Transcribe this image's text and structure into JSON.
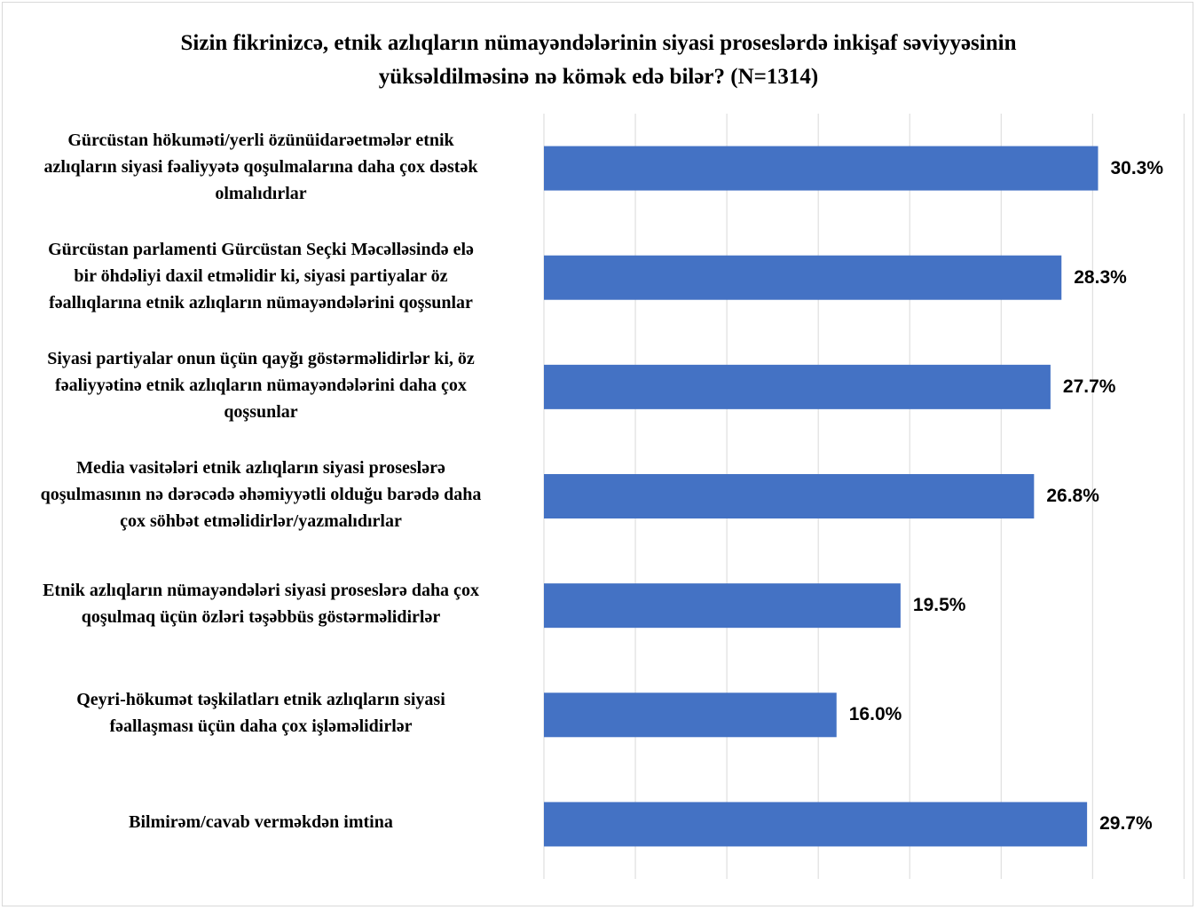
{
  "chart_data": {
    "type": "bar",
    "orientation": "horizontal",
    "title": [
      "Sizin fikrinizcə, etnik azlıqların nümayəndələrinin siyasi proseslərdə inkişaf səviyyəsinin",
      "yüksəldilməsinə nə kömək edə bilər? (N=1314)"
    ],
    "categories": [
      [
        "Gürcüstan hökuməti/yerli özünüidarəetmələr etnik",
        "azlıqların siyasi fəaliyyətə qoşulmalarına daha çox dəstək",
        "olmalıdırlar"
      ],
      [
        "Gürcüstan parlamenti Gürcüstan Seçki Məcəlləsində elə",
        "bir öhdəliyi daxil etməlidir ki, siyasi partiyalar öz",
        "fəallıqlarına etnik azlıqların nümayəndələrini qoşsunlar"
      ],
      [
        "Siyasi partiyalar onun üçün qayğı göstərməlidirlər ki, öz",
        "fəaliyyətinə etnik azlıqların nümayəndələrini daha çox",
        "qoşsunlar"
      ],
      [
        "Media vasitələri etnik azlıqların siyasi proseslərə",
        "qoşulmasının nə dərəcədə əhəmiyyətli olduğu barədə daha",
        "çox söhbət etməlidirlər/yazmalıdırlar"
      ],
      [
        "Etnik azlıqların nümayəndələri siyasi proseslərə daha çox",
        "qoşulmaq üçün özləri təşəbbüs göstərməlidirlər"
      ],
      [
        "Qeyri-hökumət təşkilatları etnik azlıqların siyasi",
        "fəallaşması üçün daha çox işləməlidirlər"
      ],
      [
        "Bilmirəm/cavab verməkdən imtina"
      ]
    ],
    "values": [
      30.3,
      28.3,
      27.7,
      26.8,
      19.5,
      16.0,
      29.7
    ],
    "value_labels": [
      "30.3%",
      "28.3%",
      "27.7%",
      "26.8%",
      "19.5%",
      "16.0%",
      "29.7%"
    ],
    "xlim": [
      0,
      35
    ],
    "grid": true,
    "legend": "none",
    "bar_color": "#4472c4",
    "grid_color": "#d9d9d9"
  }
}
